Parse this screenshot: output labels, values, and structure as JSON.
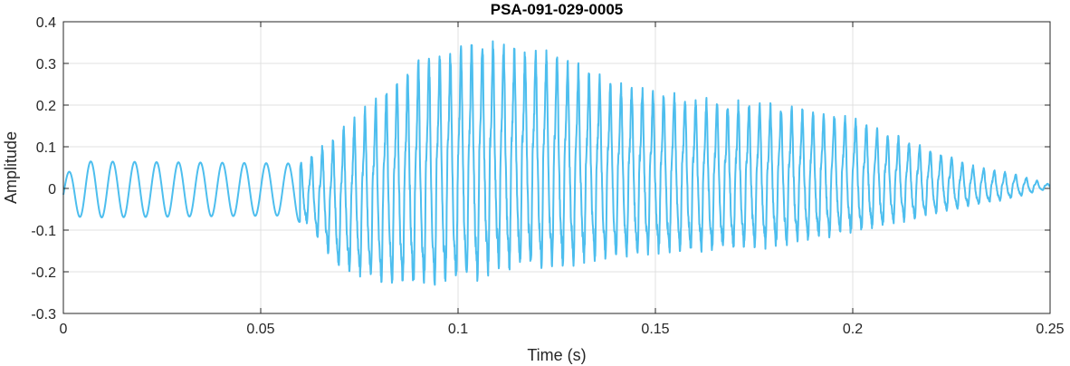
{
  "chart_data": {
    "type": "line",
    "title": "PSA-091-029-0005",
    "xlabel": "Time (s)",
    "ylabel": "Amplitude",
    "xlim": [
      0,
      0.25
    ],
    "ylim": [
      -0.3,
      0.4
    ],
    "grid": true,
    "x_ticks": [
      {
        "value": 0,
        "label": "0"
      },
      {
        "value": 0.05,
        "label": "0.05"
      },
      {
        "value": 0.1,
        "label": "0.1"
      },
      {
        "value": 0.15,
        "label": "0.15"
      },
      {
        "value": 0.2,
        "label": "0.2"
      },
      {
        "value": 0.25,
        "label": "0.25"
      }
    ],
    "y_ticks": [
      {
        "value": 0.4,
        "label": "0.4"
      },
      {
        "value": 0.3,
        "label": "0.3"
      },
      {
        "value": 0.2,
        "label": "0.2"
      },
      {
        "value": 0.1,
        "label": "0.1"
      },
      {
        "value": 0,
        "label": "0"
      },
      {
        "value": -0.1,
        "label": "-0.1"
      },
      {
        "value": -0.2,
        "label": "-0.2"
      },
      {
        "value": -0.3,
        "label": "-0.3"
      }
    ],
    "series": [
      {
        "color": "#4DBEEE",
        "envelope": {
          "t": [
            0,
            0.005,
            0.058,
            0.062,
            0.07,
            0.08,
            0.09,
            0.1,
            0.105,
            0.11,
            0.125,
            0.14,
            0.16,
            0.18,
            0.2,
            0.215,
            0.23,
            0.24,
            0.25
          ],
          "max": [
            0.03,
            0.065,
            0.06,
            0.08,
            0.15,
            0.24,
            0.33,
            0.36,
            0.385,
            0.37,
            0.34,
            0.27,
            0.23,
            0.215,
            0.18,
            0.12,
            0.06,
            0.04,
            0.01
          ],
          "min": [
            -0.06,
            -0.07,
            -0.065,
            -0.1,
            -0.22,
            -0.26,
            -0.28,
            -0.27,
            -0.27,
            -0.24,
            -0.23,
            -0.2,
            -0.18,
            -0.17,
            -0.13,
            -0.09,
            -0.05,
            -0.03,
            0.0
          ]
        },
        "low_freq_hz": 180,
        "high_freq_hz": 370,
        "onset_s": 0.06
      }
    ]
  }
}
